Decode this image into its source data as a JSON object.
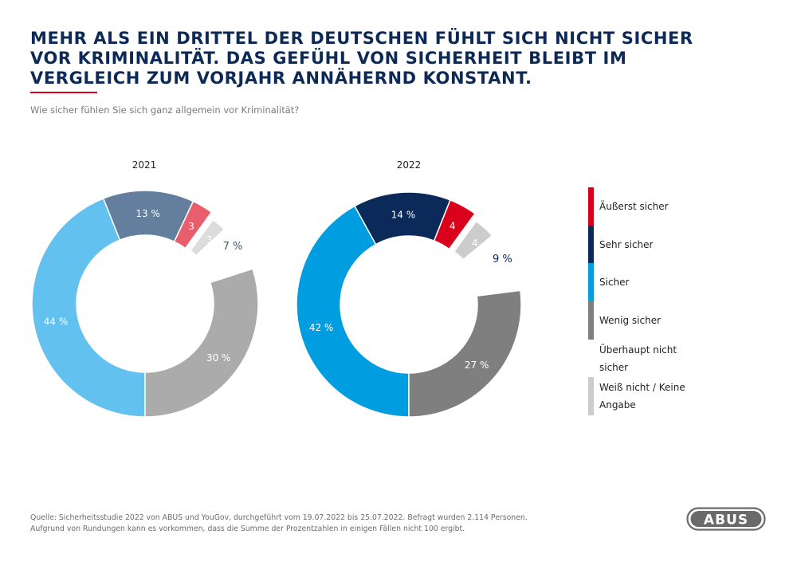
{
  "header": {
    "title": "MEHR ALS EIN DRITTEL DER DEUTSCHEN FÜHLT SICH NICHT SICHER VOR KRIMINALITÄT. DAS GEFÜHL VON SICHERHEIT BLEIBT IM VERGLEICH ZUM VORJAHR ANNÄHERND KONSTANT.",
    "subtitle": "Wie sicher fühlen Sie sich ganz allgemein vor Kriminalität?"
  },
  "chart_data": [
    {
      "type": "pie",
      "subtype": "donut",
      "title": "2021",
      "start": "bottom",
      "direction": "clockwise",
      "slices": [
        {
          "category": "Sicher",
          "value": 44,
          "label": "44 %",
          "color": "#62c1ee",
          "label_color": "#ffffff"
        },
        {
          "category": "Sehr sicher",
          "value": 13,
          "label": "13 %",
          "color": "#647f9e",
          "label_color": "#ffffff"
        },
        {
          "category": "Äußerst sicher",
          "value": 3,
          "label": "3",
          "color": "#e95e6d",
          "label_color": "#ffffff"
        },
        {
          "category": "Weiß nicht / Keine Angabe",
          "value": 3,
          "label": "3",
          "color": "#dcdcdc",
          "label_color": "#ffffff",
          "offset": true
        },
        {
          "category": "Überhaupt nicht sicher",
          "value": 7,
          "label": "7 %",
          "color": "#ffffff",
          "label_color": "#3f5677"
        },
        {
          "category": "Wenig sicher",
          "value": 30,
          "label": "30 %",
          "color": "#ababab",
          "label_color": "#ffffff"
        }
      ]
    },
    {
      "type": "pie",
      "subtype": "donut",
      "title": "2022",
      "start": "bottom",
      "direction": "clockwise",
      "slices": [
        {
          "category": "Sicher",
          "value": 42,
          "label": "42 %",
          "color": "#009ee0",
          "label_color": "#ffffff"
        },
        {
          "category": "Sehr sicher",
          "value": 14,
          "label": "14 %",
          "color": "#0b2a59",
          "label_color": "#ffffff"
        },
        {
          "category": "Äußerst sicher",
          "value": 4,
          "label": "4",
          "color": "#d9001b",
          "label_color": "#ffffff"
        },
        {
          "category": "Weiß nicht / Keine Angabe",
          "value": 4,
          "label": "4",
          "color": "#cccccc",
          "label_color": "#ffffff",
          "offset": true
        },
        {
          "category": "Überhaupt nicht sicher",
          "value": 9,
          "label": "9 %",
          "color": "#ffffff",
          "label_color": "#0b2a59"
        },
        {
          "category": "Wenig sicher",
          "value": 27,
          "label": "27 %",
          "color": "#7f7f7f",
          "label_color": "#ffffff"
        }
      ]
    }
  ],
  "legend": [
    {
      "label": "Äußerst sicher",
      "color": "#d9001b"
    },
    {
      "label": "Sehr sicher",
      "color": "#0b2a59"
    },
    {
      "label": "Sicher",
      "color": "#009ee0"
    },
    {
      "label": "Wenig sicher",
      "color": "#7f7f7f"
    },
    {
      "label": "Überhaupt nicht sicher",
      "color": "#ffffff"
    },
    {
      "label": "Weiß nicht / Keine Angabe",
      "color": "#cccccc"
    }
  ],
  "footer": {
    "source": "Quelle: Sicherheitsstudie 2022 von ABUS und YouGov, durchgeführt vom 19.07.2022 bis 25.07.2022. Befragt wurden 2.114 Personen.",
    "note": "Aufgrund von Rundungen kann es vorkommen, dass die Summe der Prozentzahlen in einigen Fällen nicht 100 ergibt."
  },
  "brand": {
    "logo_text": "ABUS",
    "title_color": "#0d2a57",
    "accent_color": "#d9001b"
  }
}
